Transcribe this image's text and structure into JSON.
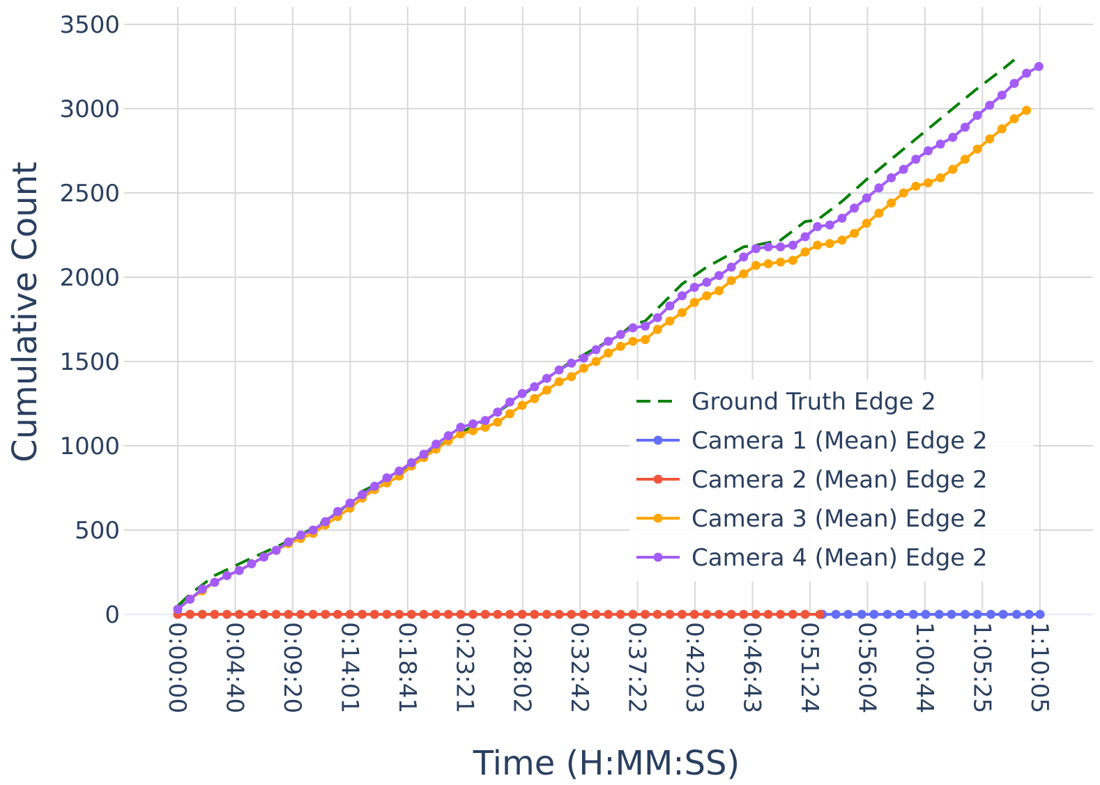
{
  "chart_data": {
    "type": "line",
    "title": "",
    "xlabel": "Time (H:MM:SS)",
    "ylabel": "Cumulative Count",
    "ylim": [
      0,
      3500
    ],
    "xlim_seconds_label": "0:00:00 to 1:10:05",
    "grid": true,
    "legend_position": "bottom-right",
    "x_tick_labels": [
      "0:00:00",
      "0:04:40",
      "0:09:20",
      "0:14:01",
      "0:18:41",
      "0:23:21",
      "0:28:02",
      "0:32:42",
      "0:37:22",
      "0:42:03",
      "0:46:43",
      "0:51:24",
      "0:56:04",
      "1:00:44",
      "1:05:25",
      "1:10:05"
    ],
    "y_tick_labels": [
      "0",
      "500",
      "1000",
      "1500",
      "2000",
      "2500",
      "3000",
      "3500"
    ],
    "y_tick_values": [
      0,
      500,
      1000,
      1500,
      2000,
      2500,
      3000,
      3500
    ],
    "series": [
      {
        "name": "Ground Truth Edge 2",
        "color": "#008000",
        "style": "dash",
        "markers": false,
        "points": [
          [
            0,
            50
          ],
          [
            1,
            120
          ],
          [
            3,
            230
          ],
          [
            5,
            300
          ],
          [
            8,
            400
          ],
          [
            10,
            470
          ],
          [
            13,
            600
          ],
          [
            15,
            730
          ],
          [
            17,
            800
          ],
          [
            20,
            940
          ],
          [
            23,
            1080
          ],
          [
            25,
            1150
          ],
          [
            28,
            1300
          ],
          [
            30,
            1400
          ],
          [
            32,
            1500
          ],
          [
            34,
            1580
          ],
          [
            36,
            1660
          ],
          [
            37,
            1720
          ],
          [
            38,
            1740
          ],
          [
            41,
            1960
          ],
          [
            43,
            2060
          ],
          [
            46,
            2180
          ],
          [
            47,
            2190
          ],
          [
            49,
            2220
          ],
          [
            51,
            2330
          ],
          [
            52,
            2340
          ],
          [
            54,
            2450
          ],
          [
            56,
            2580
          ],
          [
            59,
            2760
          ],
          [
            62,
            2940
          ],
          [
            65,
            3120
          ],
          [
            67,
            3230
          ],
          [
            68,
            3290
          ]
        ]
      },
      {
        "name": "Camera 1 (Mean) Edge 2",
        "color": "#636efa",
        "style": "solid",
        "markers": true,
        "points": [
          [
            52.4,
            0
          ],
          [
            53.5,
            0
          ],
          [
            54.5,
            0
          ],
          [
            55.6,
            0
          ],
          [
            56.6,
            0
          ],
          [
            57.7,
            0
          ],
          [
            58.7,
            0
          ],
          [
            59.8,
            0
          ],
          [
            60.8,
            0
          ],
          [
            61.9,
            0
          ],
          [
            62.9,
            0
          ],
          [
            64,
            0
          ],
          [
            65,
            0
          ],
          [
            66.1,
            0
          ],
          [
            67.1,
            0
          ],
          [
            68.2,
            0
          ],
          [
            69.2,
            0
          ],
          [
            70.1,
            0
          ]
        ]
      },
      {
        "name": "Camera 2 (Mean) Edge 2",
        "color": "#ef553b",
        "style": "solid",
        "markers": true,
        "points": [
          [
            0,
            0
          ],
          [
            1,
            0
          ],
          [
            2,
            0
          ],
          [
            3,
            0
          ],
          [
            4,
            0
          ],
          [
            5,
            0
          ],
          [
            6,
            0
          ],
          [
            7,
            0
          ],
          [
            8,
            0
          ],
          [
            9,
            0
          ],
          [
            10,
            0
          ],
          [
            11,
            0
          ],
          [
            12,
            0
          ],
          [
            13,
            0
          ],
          [
            14,
            0
          ],
          [
            15,
            0
          ],
          [
            16,
            0
          ],
          [
            17,
            0
          ],
          [
            18,
            0
          ],
          [
            19,
            0
          ],
          [
            20,
            0
          ],
          [
            21,
            0
          ],
          [
            22,
            0
          ],
          [
            23,
            0
          ],
          [
            24,
            0
          ],
          [
            25,
            0
          ],
          [
            26,
            0
          ],
          [
            27,
            0
          ],
          [
            28,
            0
          ],
          [
            29,
            0
          ],
          [
            30,
            0
          ],
          [
            31,
            0
          ],
          [
            32,
            0
          ],
          [
            33,
            0
          ],
          [
            34,
            0
          ],
          [
            35,
            0
          ],
          [
            36,
            0
          ],
          [
            37,
            0
          ],
          [
            38,
            0
          ],
          [
            39,
            0
          ],
          [
            40,
            0
          ],
          [
            41,
            0
          ],
          [
            42,
            0
          ],
          [
            43,
            0
          ],
          [
            44,
            0
          ],
          [
            45,
            0
          ],
          [
            46,
            0
          ],
          [
            47,
            0
          ],
          [
            48,
            0
          ],
          [
            49,
            0
          ],
          [
            50,
            0
          ],
          [
            51,
            0
          ],
          [
            52.2,
            0
          ]
        ]
      },
      {
        "name": "Camera 3 (Mean) Edge 2",
        "color": "#ffa500",
        "style": "solid",
        "markers": true,
        "points": [
          [
            0,
            30
          ],
          [
            1,
            90
          ],
          [
            2,
            140
          ],
          [
            3,
            190
          ],
          [
            4,
            230
          ],
          [
            5,
            260
          ],
          [
            6,
            300
          ],
          [
            7,
            340
          ],
          [
            8,
            380
          ],
          [
            9,
            420
          ],
          [
            10,
            450
          ],
          [
            11,
            480
          ],
          [
            12,
            530
          ],
          [
            13,
            580
          ],
          [
            14,
            630
          ],
          [
            15,
            690
          ],
          [
            16,
            740
          ],
          [
            17,
            780
          ],
          [
            18,
            820
          ],
          [
            19,
            880
          ],
          [
            20,
            930
          ],
          [
            21,
            980
          ],
          [
            22,
            1030
          ],
          [
            23,
            1070
          ],
          [
            24,
            1090
          ],
          [
            25,
            1110
          ],
          [
            26,
            1140
          ],
          [
            27,
            1190
          ],
          [
            28,
            1240
          ],
          [
            29,
            1280
          ],
          [
            30,
            1330
          ],
          [
            31,
            1380
          ],
          [
            32,
            1410
          ],
          [
            33,
            1460
          ],
          [
            34,
            1500
          ],
          [
            35,
            1550
          ],
          [
            36,
            1590
          ],
          [
            37,
            1620
          ],
          [
            38,
            1630
          ],
          [
            39,
            1690
          ],
          [
            40,
            1740
          ],
          [
            41,
            1790
          ],
          [
            42,
            1850
          ],
          [
            43,
            1890
          ],
          [
            44,
            1920
          ],
          [
            45,
            1980
          ],
          [
            46,
            2020
          ],
          [
            47,
            2070
          ],
          [
            48,
            2080
          ],
          [
            49,
            2090
          ],
          [
            50,
            2100
          ],
          [
            51,
            2150
          ],
          [
            52,
            2190
          ],
          [
            53,
            2200
          ],
          [
            54,
            2220
          ],
          [
            55,
            2260
          ],
          [
            56,
            2320
          ],
          [
            57,
            2380
          ],
          [
            58,
            2440
          ],
          [
            59,
            2500
          ],
          [
            60,
            2540
          ],
          [
            61,
            2560
          ],
          [
            62,
            2590
          ],
          [
            63,
            2640
          ],
          [
            64,
            2700
          ],
          [
            65,
            2760
          ],
          [
            66,
            2820
          ],
          [
            67,
            2880
          ],
          [
            68,
            2940
          ],
          [
            69,
            2990
          ]
        ]
      },
      {
        "name": "Camera 4 (Mean) Edge 2",
        "color": "#a35cf7",
        "style": "solid",
        "markers": true,
        "points": [
          [
            0,
            30
          ],
          [
            1,
            90
          ],
          [
            2,
            150
          ],
          [
            3,
            190
          ],
          [
            4,
            230
          ],
          [
            5,
            260
          ],
          [
            6,
            300
          ],
          [
            7,
            340
          ],
          [
            8,
            380
          ],
          [
            9,
            430
          ],
          [
            10,
            470
          ],
          [
            11,
            500
          ],
          [
            12,
            550
          ],
          [
            13,
            610
          ],
          [
            14,
            660
          ],
          [
            15,
            710
          ],
          [
            16,
            760
          ],
          [
            17,
            810
          ],
          [
            18,
            850
          ],
          [
            19,
            900
          ],
          [
            20,
            950
          ],
          [
            21,
            1010
          ],
          [
            22,
            1060
          ],
          [
            23,
            1110
          ],
          [
            24,
            1130
          ],
          [
            25,
            1150
          ],
          [
            26,
            1200
          ],
          [
            27,
            1260
          ],
          [
            28,
            1310
          ],
          [
            29,
            1350
          ],
          [
            30,
            1400
          ],
          [
            31,
            1450
          ],
          [
            32,
            1490
          ],
          [
            33,
            1520
          ],
          [
            34,
            1570
          ],
          [
            35,
            1620
          ],
          [
            36,
            1660
          ],
          [
            37,
            1700
          ],
          [
            38,
            1710
          ],
          [
            39,
            1760
          ],
          [
            40,
            1830
          ],
          [
            41,
            1890
          ],
          [
            42,
            1940
          ],
          [
            43,
            1970
          ],
          [
            44,
            2010
          ],
          [
            45,
            2060
          ],
          [
            46,
            2120
          ],
          [
            47,
            2170
          ],
          [
            48,
            2180
          ],
          [
            49,
            2180
          ],
          [
            50,
            2190
          ],
          [
            51,
            2240
          ],
          [
            52,
            2300
          ],
          [
            53,
            2310
          ],
          [
            54,
            2350
          ],
          [
            55,
            2410
          ],
          [
            56,
            2470
          ],
          [
            57,
            2530
          ],
          [
            58,
            2590
          ],
          [
            59,
            2640
          ],
          [
            60,
            2700
          ],
          [
            61,
            2750
          ],
          [
            62,
            2790
          ],
          [
            63,
            2830
          ],
          [
            64,
            2890
          ],
          [
            65,
            2960
          ],
          [
            66,
            3020
          ],
          [
            67,
            3080
          ],
          [
            68,
            3150
          ],
          [
            69,
            3210
          ],
          [
            70,
            3250
          ]
        ]
      }
    ]
  }
}
